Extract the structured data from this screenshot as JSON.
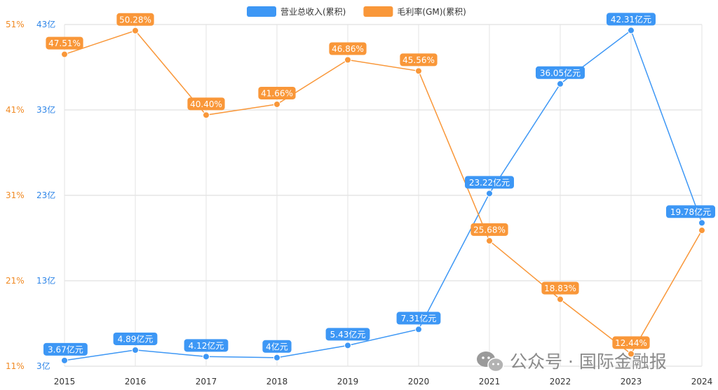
{
  "chart_data": {
    "type": "line",
    "categories": [
      "2015",
      "2016",
      "2017",
      "2018",
      "2019",
      "2020",
      "2021",
      "2022",
      "2023",
      "2024"
    ],
    "series": [
      {
        "name": "营业总收入(累积)",
        "axis": "left",
        "color": "#3d97f5",
        "values": [
          3.67,
          4.89,
          4.12,
          4,
          5.43,
          7.31,
          23.22,
          36.05,
          42.31,
          19.78
        ],
        "labels": [
          "3.67亿元",
          "4.89亿元",
          "4.12亿元",
          "4亿元",
          "5.43亿元",
          "7.31亿元",
          "23.22亿元",
          "36.05亿元",
          "42.31亿元",
          "19.78亿元"
        ]
      },
      {
        "name": "毛利率(GM)(累积)",
        "axis": "right",
        "color": "#f99739",
        "values": [
          47.51,
          50.28,
          40.4,
          41.66,
          46.86,
          45.56,
          25.68,
          18.83,
          12.44,
          26.9
        ],
        "labels": [
          "47.51%",
          "50.28%",
          "40.40%",
          "41.66%",
          "46.86%",
          "45.56%",
          "25.68%",
          "18.83%",
          "12.44%",
          ""
        ]
      }
    ],
    "y_left": {
      "ticks": [
        3,
        13,
        23,
        33,
        43
      ],
      "tick_labels": [
        "3亿",
        "13亿",
        "23亿",
        "33亿",
        "43亿"
      ],
      "range": [
        3,
        43
      ],
      "color": "#2f86e8"
    },
    "y_right": {
      "ticks": [
        11,
        21,
        31,
        41,
        51
      ],
      "tick_labels": [
        "11%",
        "21%",
        "31%",
        "41%",
        "51%"
      ],
      "range": [
        11,
        51
      ],
      "color": "#f08a24"
    },
    "grid": true,
    "legend_position": "top-center"
  },
  "watermark": {
    "text": "公众号 · 国际金融报",
    "icon": "wechat-icon"
  }
}
